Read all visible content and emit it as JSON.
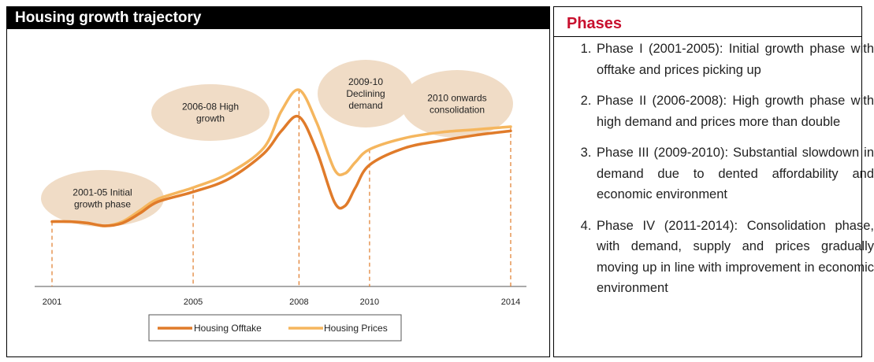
{
  "left_header": {
    "title": "Housing growth trajectory"
  },
  "right_panel": {
    "title": "Phases",
    "phases": [
      "Phase I (2001-2005): Initial growth phase with offtake and prices picking up",
      "Phase II (2006-2008): High growth phase with high demand and prices more than double",
      "Phase III (2009-2010): Substantial slowdown in demand due to dented affordability and economic environment",
      "Phase IV (2011-2014): Consolidation phase, with demand, supply and prices gradually moving up in line with improvement in economic environment"
    ]
  },
  "colors": {
    "offtake": "#e07b2a",
    "prices": "#f5b65e",
    "bubble": "#f0dcc6",
    "header_bg": "#000000",
    "phases_title": "#c8102e"
  },
  "chart_data": {
    "type": "line",
    "title": "",
    "xlabel": "",
    "ylabel": "",
    "x_ticks": [
      "2001",
      "2005",
      "2008",
      "2010",
      "2014"
    ],
    "xlim": [
      2001,
      2014
    ],
    "ylim": [
      0,
      100
    ],
    "series": [
      {
        "name": "Housing Offtake",
        "x": [
          2001,
          2001.5,
          2002,
          2002.5,
          2003,
          2003.5,
          2004,
          2005,
          2006,
          2007,
          2007.5,
          2008,
          2008.5,
          2009,
          2009.3,
          2009.6,
          2010,
          2011,
          2012,
          2013,
          2014
        ],
        "values": [
          18,
          18,
          17,
          15,
          17,
          24,
          32,
          39,
          48,
          66,
          82,
          92,
          68,
          32,
          29,
          42,
          58,
          70,
          75,
          79,
          82
        ]
      },
      {
        "name": "Housing Prices",
        "x": [
          2001,
          2001.5,
          2002,
          2002.5,
          2003,
          2003.5,
          2004,
          2005,
          2006,
          2007,
          2007.5,
          2008,
          2008.5,
          2009,
          2009.3,
          2009.6,
          2010,
          2011,
          2012,
          2013,
          2014
        ],
        "values": [
          18,
          18,
          17,
          15,
          18,
          26,
          34,
          42,
          52,
          70,
          96,
          111,
          88,
          55,
          52,
          60,
          69,
          77,
          81,
          83,
          85
        ]
      }
    ],
    "annotations": [
      {
        "label": [
          "2001-05 Initial",
          "growth phase"
        ]
      },
      {
        "label": [
          "2006-08 High",
          "growth"
        ]
      },
      {
        "label": [
          "2009-10",
          "Declining",
          "demand"
        ]
      },
      {
        "label": [
          "2010 onwards",
          "consolidation"
        ]
      }
    ],
    "grid": false,
    "legend": "bottom-center"
  }
}
